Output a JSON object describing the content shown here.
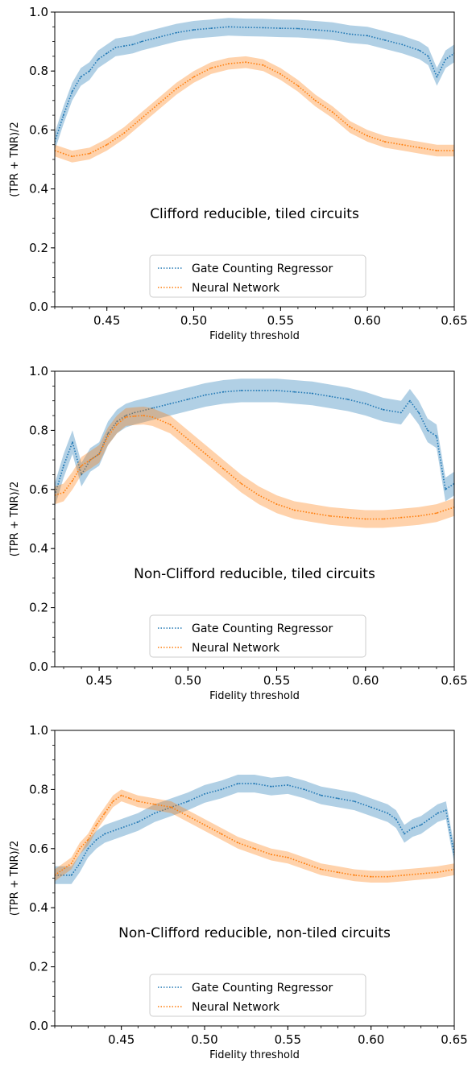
{
  "chart_data": [
    {
      "type": "line",
      "annotation": "Clifford reducible, tiled circuits",
      "xlabel": "Fidelity threshold",
      "ylabel": "(TPR + TNR)/2",
      "xlim": [
        0.42,
        0.65
      ],
      "ylim": [
        0.0,
        1.0
      ],
      "xticks": [
        "0.45",
        "0.50",
        "0.55",
        "0.60",
        "0.65"
      ],
      "yticks": [
        "0.0",
        "0.2",
        "0.4",
        "0.6",
        "0.8",
        "1.0"
      ],
      "legend_position": "lower-center",
      "series": [
        {
          "name": "Gate Counting Regressor",
          "color": "#1f77b4",
          "x": [
            0.42,
            0.425,
            0.43,
            0.435,
            0.44,
            0.445,
            0.45,
            0.455,
            0.46,
            0.465,
            0.47,
            0.48,
            0.49,
            0.5,
            0.51,
            0.52,
            0.53,
            0.54,
            0.55,
            0.56,
            0.57,
            0.58,
            0.59,
            0.6,
            0.61,
            0.62,
            0.63,
            0.635,
            0.64,
            0.645,
            0.65
          ],
          "y": [
            0.56,
            0.65,
            0.73,
            0.78,
            0.8,
            0.84,
            0.86,
            0.88,
            0.885,
            0.89,
            0.9,
            0.915,
            0.93,
            0.94,
            0.945,
            0.95,
            0.948,
            0.947,
            0.945,
            0.944,
            0.94,
            0.935,
            0.925,
            0.92,
            0.905,
            0.89,
            0.87,
            0.85,
            0.78,
            0.84,
            0.86
          ],
          "band": 0.03
        },
        {
          "name": "Neural Network",
          "color": "#ff7f0e",
          "x": [
            0.42,
            0.425,
            0.43,
            0.44,
            0.45,
            0.46,
            0.47,
            0.48,
            0.49,
            0.5,
            0.51,
            0.52,
            0.53,
            0.54,
            0.55,
            0.56,
            0.57,
            0.58,
            0.59,
            0.6,
            0.61,
            0.62,
            0.63,
            0.64,
            0.65
          ],
          "y": [
            0.53,
            0.52,
            0.51,
            0.52,
            0.55,
            0.59,
            0.64,
            0.69,
            0.74,
            0.78,
            0.81,
            0.825,
            0.83,
            0.82,
            0.79,
            0.75,
            0.7,
            0.66,
            0.61,
            0.58,
            0.56,
            0.55,
            0.54,
            0.53,
            0.53
          ],
          "band": 0.02
        }
      ]
    },
    {
      "type": "line",
      "annotation": "Non-Clifford reducible, tiled circuits",
      "xlabel": "Fidelity threshold",
      "ylabel": "(TPR + TNR)/2",
      "xlim": [
        0.425,
        0.65
      ],
      "ylim": [
        0.0,
        1.0
      ],
      "xticks": [
        "0.45",
        "0.50",
        "0.55",
        "0.60",
        "0.65"
      ],
      "yticks": [
        "0.0",
        "0.2",
        "0.4",
        "0.6",
        "0.8",
        "1.0"
      ],
      "legend_position": "lower-center",
      "series": [
        {
          "name": "Gate Counting Regressor",
          "color": "#1f77b4",
          "x": [
            0.425,
            0.43,
            0.435,
            0.44,
            0.445,
            0.45,
            0.455,
            0.46,
            0.465,
            0.47,
            0.48,
            0.49,
            0.5,
            0.51,
            0.52,
            0.53,
            0.54,
            0.55,
            0.56,
            0.57,
            0.58,
            0.59,
            0.6,
            0.61,
            0.62,
            0.625,
            0.63,
            0.635,
            0.64,
            0.645,
            0.65
          ],
          "y": [
            0.58,
            0.68,
            0.76,
            0.65,
            0.7,
            0.72,
            0.79,
            0.83,
            0.85,
            0.86,
            0.875,
            0.89,
            0.905,
            0.92,
            0.93,
            0.935,
            0.935,
            0.935,
            0.93,
            0.925,
            0.915,
            0.905,
            0.89,
            0.87,
            0.86,
            0.9,
            0.86,
            0.8,
            0.78,
            0.6,
            0.62
          ],
          "band": 0.04
        },
        {
          "name": "Neural Network",
          "color": "#ff7f0e",
          "x": [
            0.425,
            0.43,
            0.435,
            0.44,
            0.445,
            0.45,
            0.455,
            0.46,
            0.465,
            0.47,
            0.475,
            0.48,
            0.49,
            0.5,
            0.51,
            0.52,
            0.53,
            0.54,
            0.55,
            0.56,
            0.57,
            0.58,
            0.59,
            0.6,
            0.61,
            0.62,
            0.63,
            0.64,
            0.65
          ],
          "y": [
            0.58,
            0.59,
            0.63,
            0.68,
            0.7,
            0.72,
            0.78,
            0.82,
            0.845,
            0.848,
            0.85,
            0.845,
            0.82,
            0.77,
            0.72,
            0.67,
            0.62,
            0.58,
            0.55,
            0.53,
            0.52,
            0.51,
            0.505,
            0.5,
            0.5,
            0.505,
            0.51,
            0.52,
            0.54
          ],
          "band": 0.03
        }
      ]
    },
    {
      "type": "line",
      "annotation": "Non-Clifford reducible, non-tiled circuits",
      "xlabel": "Fidelity threshold",
      "ylabel": "(TPR + TNR)/2",
      "xlim": [
        0.41,
        0.65
      ],
      "ylim": [
        0.0,
        1.0
      ],
      "xticks": [
        "0.45",
        "0.50",
        "0.55",
        "0.60",
        "0.65"
      ],
      "yticks": [
        "0.0",
        "0.2",
        "0.4",
        "0.6",
        "0.8",
        "1.0"
      ],
      "legend_position": "lower-center",
      "series": [
        {
          "name": "Gate Counting Regressor",
          "color": "#1f77b4",
          "x": [
            0.41,
            0.42,
            0.425,
            0.43,
            0.435,
            0.44,
            0.45,
            0.46,
            0.47,
            0.48,
            0.49,
            0.5,
            0.51,
            0.52,
            0.53,
            0.54,
            0.55,
            0.56,
            0.57,
            0.58,
            0.59,
            0.6,
            0.61,
            0.615,
            0.62,
            0.625,
            0.63,
            0.635,
            0.64,
            0.645,
            0.65
          ],
          "y": [
            0.51,
            0.51,
            0.55,
            0.6,
            0.63,
            0.65,
            0.67,
            0.69,
            0.72,
            0.74,
            0.76,
            0.785,
            0.8,
            0.82,
            0.82,
            0.81,
            0.815,
            0.8,
            0.78,
            0.77,
            0.76,
            0.74,
            0.72,
            0.7,
            0.65,
            0.67,
            0.68,
            0.7,
            0.72,
            0.73,
            0.58
          ],
          "band": 0.03
        },
        {
          "name": "Neural Network",
          "color": "#ff7f0e",
          "x": [
            0.41,
            0.42,
            0.425,
            0.43,
            0.435,
            0.44,
            0.445,
            0.45,
            0.455,
            0.46,
            0.47,
            0.48,
            0.49,
            0.5,
            0.51,
            0.52,
            0.53,
            0.54,
            0.55,
            0.56,
            0.57,
            0.58,
            0.59,
            0.6,
            0.61,
            0.62,
            0.63,
            0.64,
            0.65
          ],
          "y": [
            0.51,
            0.55,
            0.6,
            0.63,
            0.68,
            0.72,
            0.76,
            0.78,
            0.77,
            0.76,
            0.75,
            0.74,
            0.71,
            0.68,
            0.65,
            0.62,
            0.6,
            0.58,
            0.57,
            0.55,
            0.53,
            0.52,
            0.51,
            0.505,
            0.505,
            0.51,
            0.515,
            0.52,
            0.53
          ],
          "band": 0.02
        }
      ]
    }
  ]
}
